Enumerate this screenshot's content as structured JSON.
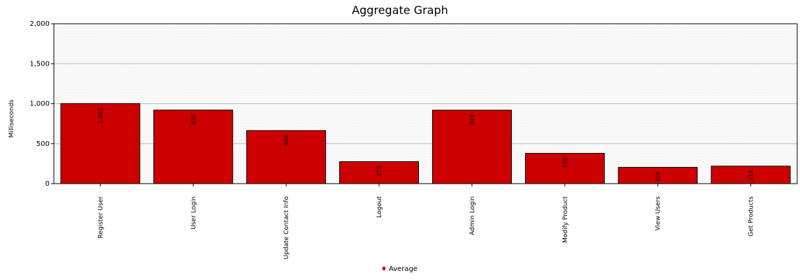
{
  "chart_data": {
    "type": "bar",
    "title": "Aggregate Graph",
    "ylabel": "Milliseconds",
    "xlabel": "",
    "ylim": [
      0,
      2000
    ],
    "yticks": [
      0,
      500,
      1000,
      1500,
      2000
    ],
    "ytick_labels": [
      "0",
      "500",
      "1,000",
      "1,500",
      "2,000"
    ],
    "grid": true,
    "legend_position": "bottom-center",
    "categories": [
      "Register User",
      "User Login",
      "Update Contact Info",
      "Logout",
      "Admin Login",
      "Modify Product",
      "View Users",
      "Get Products"
    ],
    "series": [
      {
        "name": "Average",
        "color": "#cc0000",
        "values": [
          1002,
          920,
          664,
          275,
          919,
          379,
          204,
          219
        ],
        "labels": [
          "1,002",
          "920",
          "664",
          "275",
          "919",
          "379",
          "204",
          "219"
        ]
      }
    ]
  }
}
